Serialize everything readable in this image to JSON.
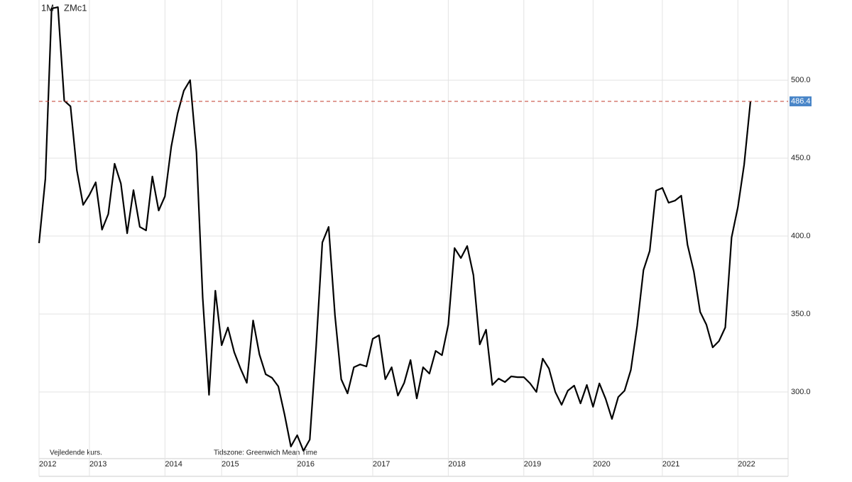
{
  "chart_data": {
    "type": "line",
    "title": "ZMc1",
    "interval": "1M",
    "note_left": "Vejledende kurs.",
    "note_timezone": "Tidszone: Greenwich Mean Time",
    "categories": [
      "2012",
      null,
      null,
      null,
      null,
      null,
      null,
      null,
      "2013",
      null,
      null,
      null,
      null,
      null,
      null,
      null,
      null,
      null,
      null,
      null,
      "2014",
      null,
      null,
      null,
      null,
      null,
      null,
      null,
      null,
      "2015",
      null,
      null,
      null,
      null,
      null,
      null,
      null,
      null,
      null,
      null,
      null,
      "2016",
      null,
      null,
      null,
      null,
      null,
      null,
      null,
      null,
      null,
      null,
      null,
      "2017",
      null,
      null,
      null,
      null,
      null,
      null,
      null,
      null,
      null,
      null,
      null,
      "2018",
      null,
      null,
      null,
      null,
      null,
      null,
      null,
      null,
      null,
      null,
      null,
      "2019",
      null,
      null,
      null,
      null,
      null,
      null,
      null,
      null,
      null,
      null,
      "2020",
      null,
      null,
      null,
      null,
      null,
      null,
      null,
      null,
      null,
      null,
      "2021",
      null,
      null,
      null,
      null,
      null,
      null,
      null,
      null,
      null,
      null,
      null,
      "2022",
      null,
      null
    ],
    "values": [
      395.5,
      436.8,
      545.9,
      546.8,
      486.8,
      483.2,
      442.3,
      420,
      426.4,
      434.5,
      404.1,
      414.1,
      446.4,
      433.6,
      401.8,
      429.5,
      405.9,
      403.6,
      438.2,
      416.4,
      425.5,
      457.3,
      478.6,
      493.2,
      500,
      453.6,
      360.5,
      298.2,
      365,
      330,
      341.4,
      325.5,
      315,
      305.9,
      345.9,
      324.1,
      311.4,
      309.1,
      303.6,
      285.5,
      265,
      272.3,
      262.3,
      269.5,
      328.6,
      395.9,
      405.9,
      349.1,
      308.2,
      299.1,
      315.9,
      317.7,
      316.4,
      334.1,
      336.4,
      308.2,
      315.9,
      297.7,
      305.9,
      320.5,
      295.9,
      315.9,
      311.8,
      326.4,
      323.6,
      343.2,
      392.3,
      385.9,
      393.6,
      375,
      330.5,
      340,
      304.5,
      308.6,
      306.4,
      310,
      309.5,
      309.5,
      305.5,
      300,
      321.4,
      315,
      300,
      291.8,
      300.9,
      304.1,
      292.7,
      304.5,
      290.5,
      305.5,
      295.5,
      282.7,
      296.8,
      300.9,
      314.1,
      342.3,
      378.2,
      390.5,
      429.1,
      430.9,
      421.4,
      422.7,
      425.9,
      394.5,
      377.3,
      351.4,
      343.2,
      328.6,
      332.7,
      341.4,
      399.1,
      418.6,
      445.9,
      486.4
    ],
    "color": "#000000",
    "last_value_color": "#4a86c8",
    "reference_line_color": "#c0392b",
    "ylim": [
      258.2,
      551.4
    ],
    "yticks": [
      {
        "value": 300,
        "label": "300.0"
      },
      {
        "value": 350,
        "label": "350.0"
      },
      {
        "value": 400,
        "label": "400.0"
      },
      {
        "value": 450,
        "label": "450.0"
      },
      {
        "value": 500,
        "label": "500.0"
      }
    ],
    "grid": true
  }
}
